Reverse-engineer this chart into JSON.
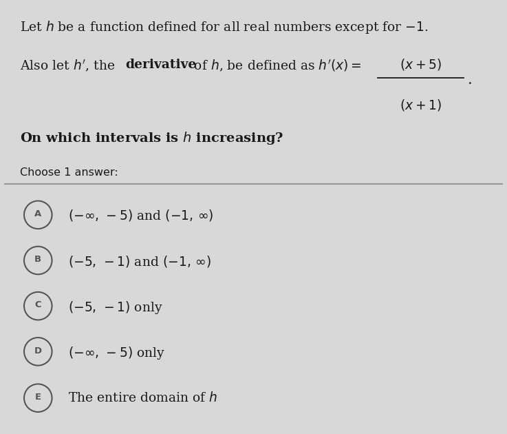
{
  "background_color": "#d8d8d8",
  "text_color": "#1a1a1a",
  "circle_color": "#555555",
  "separator_color": "#999999",
  "fig_width": 7.37,
  "fig_height": 6.3,
  "dpi": 100,
  "answers": [
    "A",
    "B",
    "C",
    "D",
    "E"
  ],
  "answer_texts": [
    "$(-\\infty,\\,-5)$ and $(-1,\\,\\infty)$",
    "$(-5,\\,-1)$ and $(-1,\\,\\infty)$",
    "$(-5,\\,-1)$ only",
    "$(-\\infty,\\,-5)$ only",
    "The entire domain of $h$"
  ]
}
